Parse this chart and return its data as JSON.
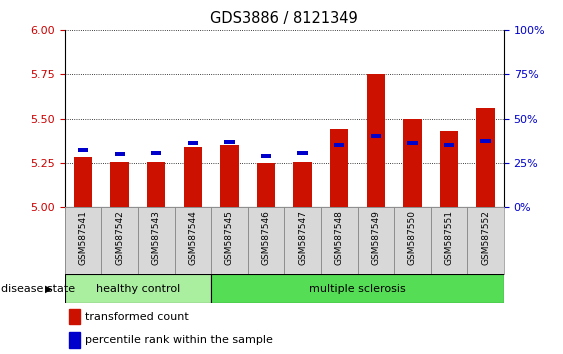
{
  "title": "GDS3886 / 8121349",
  "samples": [
    "GSM587541",
    "GSM587542",
    "GSM587543",
    "GSM587544",
    "GSM587545",
    "GSM587546",
    "GSM587547",
    "GSM587548",
    "GSM587549",
    "GSM587550",
    "GSM587551",
    "GSM587552"
  ],
  "red_values": [
    5.285,
    5.255,
    5.253,
    5.34,
    5.35,
    5.25,
    5.255,
    5.44,
    5.75,
    5.5,
    5.43,
    5.56
  ],
  "blue_values": [
    5.325,
    5.3,
    5.308,
    5.36,
    5.368,
    5.29,
    5.308,
    5.35,
    5.4,
    5.362,
    5.35,
    5.372
  ],
  "ylim_left": [
    5.0,
    6.0
  ],
  "ylim_right": [
    0,
    100
  ],
  "yticks_left": [
    5.0,
    5.25,
    5.5,
    5.75,
    6.0
  ],
  "yticks_right": [
    0,
    25,
    50,
    75,
    100
  ],
  "ytick_labels_right": [
    "0%",
    "25%",
    "50%",
    "75%",
    "100%"
  ],
  "left_tick_color": "#cc0000",
  "right_tick_color": "#0000cc",
  "bar_color_red": "#cc1100",
  "bar_color_blue": "#0000cc",
  "bar_width": 0.5,
  "blue_bar_width": 0.28,
  "blue_bar_height": 0.022,
  "grid_color": "black",
  "background_plot": "#ffffff",
  "group1_color": "#aaeea0",
  "group2_color": "#55dd55",
  "group1_label": "healthy control",
  "group2_label": "multiple sclerosis",
  "disease_state_label": "disease state",
  "legend_red": "transformed count",
  "legend_blue": "percentile rank within the sample",
  "n_healthy": 4,
  "n_total": 12
}
